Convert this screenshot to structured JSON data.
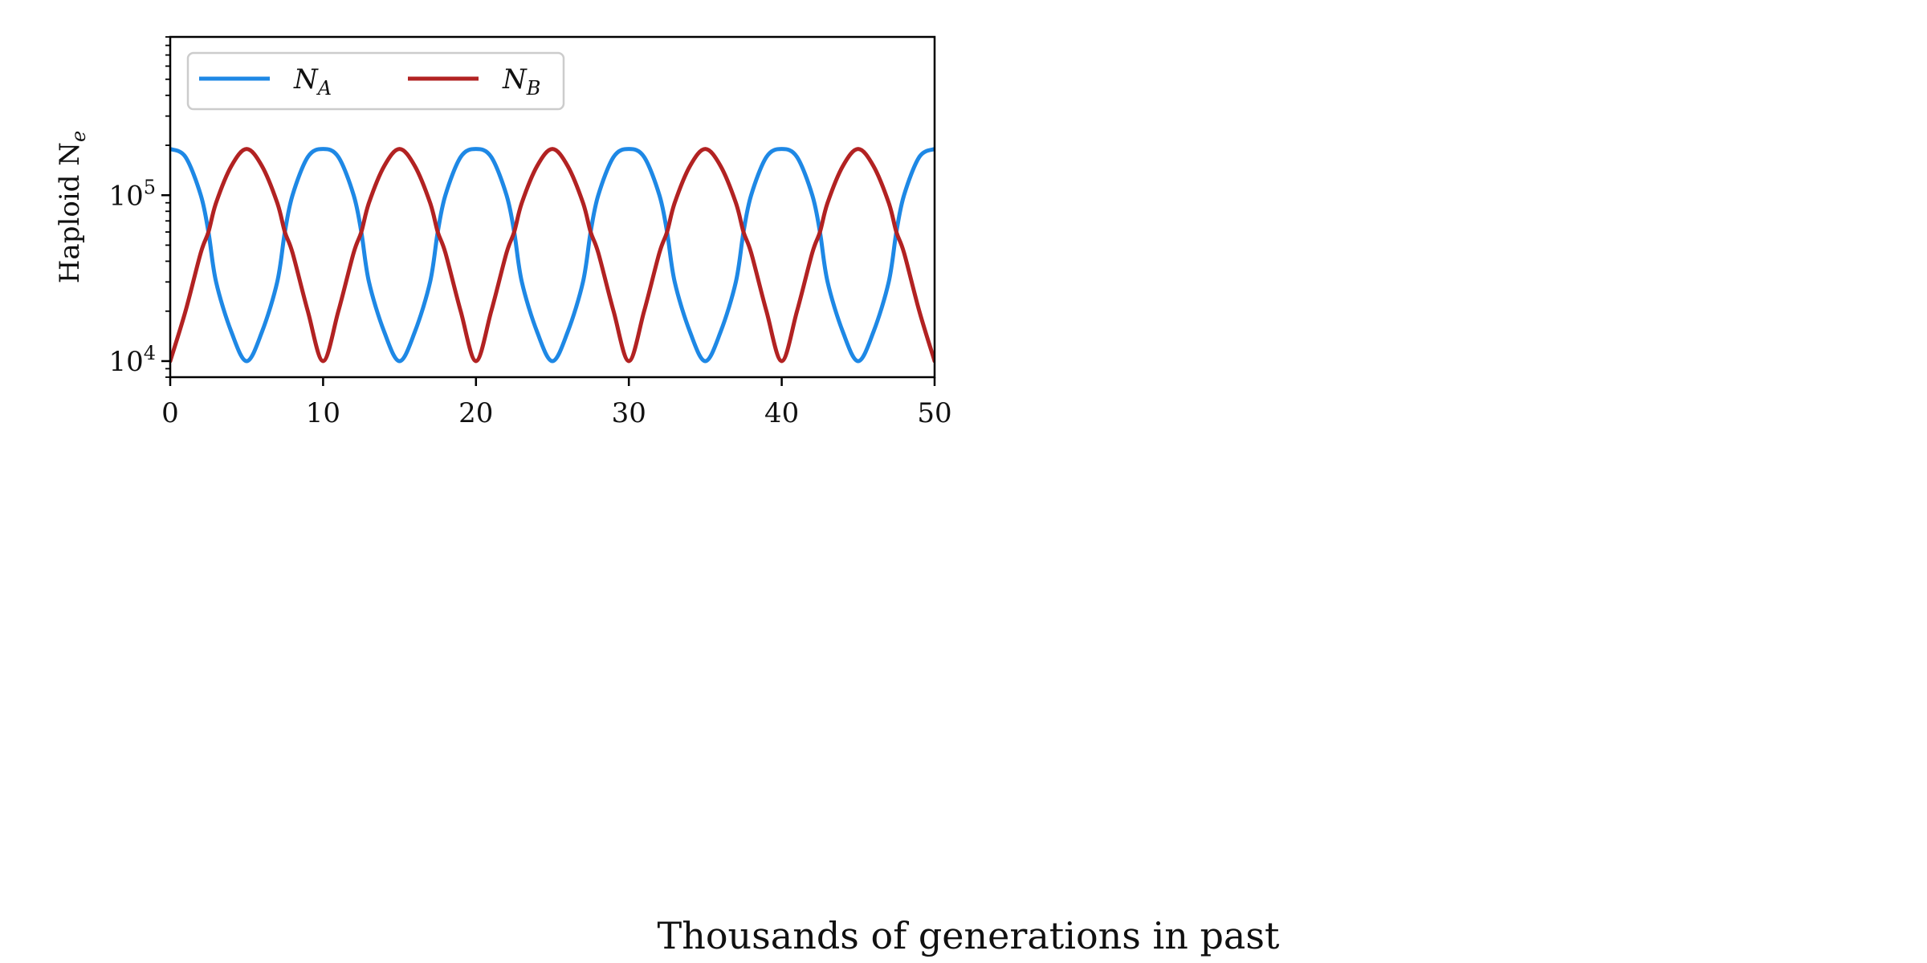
{
  "chart_data": {
    "type": "line",
    "xlabel": "Thousands of generations in past",
    "ylabel": "Haploid N",
    "ylabel_sub": "e",
    "yscale": "log",
    "xlim": [
      0,
      50
    ],
    "ylim": [
      8000,
      900000
    ],
    "xticks": [
      0,
      10,
      20,
      30,
      40,
      50
    ],
    "xtick_labels": [
      "0",
      "10",
      "20",
      "30",
      "40",
      "50"
    ],
    "yticks": [
      10000,
      100000
    ],
    "ytick_labels": [
      {
        "base": "10",
        "exp": "4"
      },
      {
        "base": "10",
        "exp": "5"
      }
    ],
    "legend_position": "top-left",
    "series": [
      {
        "name": "N",
        "name_sub": "A",
        "color": "#1e88e5",
        "x": [
          0,
          1,
          2,
          2.5,
          3,
          4,
          5,
          6,
          7,
          7.5,
          8,
          9,
          10,
          11,
          12,
          12.5,
          13,
          14,
          15,
          16,
          17,
          17.5,
          18,
          19,
          20,
          21,
          22,
          22.5,
          23,
          24,
          25,
          26,
          27,
          27.5,
          28,
          29,
          30,
          31,
          32,
          32.5,
          33,
          34,
          35,
          36,
          37,
          37.5,
          38,
          39,
          40,
          41,
          42,
          42.5,
          43,
          44,
          45,
          46,
          47,
          47.5,
          48,
          49,
          50
        ],
        "y": [
          190000,
          170000,
          100000,
          60000,
          30000,
          15000,
          10000,
          15000,
          30000,
          60000,
          100000,
          170000,
          190000,
          170000,
          100000,
          60000,
          30000,
          15000,
          10000,
          15000,
          30000,
          60000,
          100000,
          170000,
          190000,
          170000,
          100000,
          60000,
          30000,
          15000,
          10000,
          15000,
          30000,
          60000,
          100000,
          170000,
          190000,
          170000,
          100000,
          60000,
          30000,
          15000,
          10000,
          15000,
          30000,
          60000,
          100000,
          170000,
          190000,
          170000,
          100000,
          60000,
          30000,
          15000,
          10000,
          15000,
          30000,
          60000,
          100000,
          170000,
          190000
        ]
      },
      {
        "name": "N",
        "name_sub": "B",
        "color": "#b22222",
        "x": [
          0,
          1,
          2,
          2.5,
          3,
          4,
          5,
          6,
          7,
          7.5,
          8,
          9,
          10,
          11,
          12,
          12.5,
          13,
          14,
          15,
          16,
          17,
          17.5,
          18,
          19,
          20,
          21,
          22,
          22.5,
          23,
          24,
          25,
          26,
          27,
          27.5,
          28,
          29,
          30,
          31,
          32,
          32.5,
          33,
          34,
          35,
          36,
          37,
          37.5,
          38,
          39,
          40,
          41,
          42,
          42.5,
          43,
          44,
          45,
          46,
          47,
          47.5,
          48,
          49,
          50
        ],
        "y": [
          10000,
          20000,
          45000,
          60000,
          90000,
          150000,
          190000,
          150000,
          90000,
          60000,
          45000,
          20000,
          10000,
          20000,
          45000,
          60000,
          90000,
          150000,
          190000,
          150000,
          90000,
          60000,
          45000,
          20000,
          10000,
          20000,
          45000,
          60000,
          90000,
          150000,
          190000,
          150000,
          90000,
          60000,
          45000,
          20000,
          10000,
          20000,
          45000,
          60000,
          90000,
          150000,
          190000,
          150000,
          90000,
          60000,
          45000,
          20000,
          10000,
          20000,
          45000,
          60000,
          90000,
          150000,
          190000,
          150000,
          90000,
          60000,
          45000,
          20000,
          10000
        ]
      }
    ]
  }
}
